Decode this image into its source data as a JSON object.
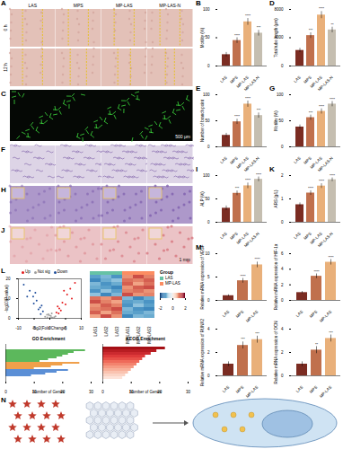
{
  "panels": {
    "A": {
      "label": "A",
      "columns": [
        "LAS",
        "MPS",
        "MP-LAS",
        "MP-LAS-N"
      ],
      "rows": [
        "0 h",
        "12 h"
      ]
    },
    "C": {
      "label": "C",
      "scale_bar": "500 μm"
    },
    "F": {
      "label": "F"
    },
    "H": {
      "label": "H"
    },
    "J": {
      "label": "J",
      "scale_bar": "1 mm"
    },
    "N": {
      "label": "N"
    }
  },
  "chart_data": [
    {
      "type": "bar",
      "title": "B",
      "y_label": "Motility (%)",
      "categories": [
        "LAS",
        "MPS",
        "MP-LAS",
        "MP-LAS-N"
      ],
      "values": [
        20,
        45,
        78,
        58
      ],
      "errors": [
        4,
        5,
        6,
        5
      ],
      "annotations": [
        null,
        "****",
        "****",
        "***"
      ],
      "colors": [
        "#7b2c22",
        "#c0704d",
        "#e9b07a",
        "#c5beb0"
      ],
      "ylim": [
        0,
        100
      ],
      "yticks": [
        0,
        50,
        100
      ]
    },
    {
      "type": "bar",
      "title": "D",
      "y_label": "Total tube length (μm)",
      "categories": [
        "LAS",
        "MPS",
        "MP-LAS",
        "MP-LAS-N"
      ],
      "values": [
        2200,
        4300,
        7200,
        5100
      ],
      "errors": [
        300,
        400,
        500,
        400
      ],
      "annotations": [
        null,
        "***",
        "****",
        "**"
      ],
      "colors": [
        "#7b2c22",
        "#c0704d",
        "#e9b07a",
        "#c5beb0"
      ],
      "ylim": [
        0,
        8000
      ],
      "yticks": [
        0,
        4000,
        8000
      ]
    },
    {
      "type": "bar",
      "title": "E",
      "y_label": "Number of branch point",
      "categories": [
        "LAS",
        "MPS",
        "MP-LAS",
        "MP-LAS-N"
      ],
      "values": [
        22,
        48,
        82,
        60
      ],
      "errors": [
        4,
        5,
        6,
        5
      ],
      "annotations": [
        null,
        "****",
        "****",
        "***"
      ],
      "colors": [
        "#7b2c22",
        "#c0704d",
        "#e9b07a",
        "#c5beb0"
      ],
      "ylim": [
        0,
        100
      ],
      "yticks": [
        0,
        50,
        100
      ]
    },
    {
      "type": "bar",
      "title": "G",
      "y_label": "Motility (%)",
      "categories": [
        "LAS",
        "MPS",
        "MP-LAS",
        "MP-LAS-N"
      ],
      "values": [
        38,
        56,
        68,
        82
      ],
      "errors": [
        4,
        5,
        5,
        5
      ],
      "annotations": [
        null,
        "***",
        "****",
        "****"
      ],
      "colors": [
        "#7b2c22",
        "#c0704d",
        "#e9b07a",
        "#c5beb0"
      ],
      "ylim": [
        0,
        100
      ],
      "yticks": [
        0,
        50,
        100
      ]
    },
    {
      "type": "bar",
      "title": "I",
      "y_label": "ALP (%)",
      "categories": [
        "LAS",
        "MPS",
        "MP-LAS",
        "MP-LAS-N"
      ],
      "values": [
        30,
        62,
        78,
        92
      ],
      "errors": [
        5,
        5,
        6,
        5
      ],
      "annotations": [
        null,
        "***",
        "****",
        "****"
      ],
      "colors": [
        "#7b2c22",
        "#c0704d",
        "#e9b07a",
        "#c5beb0"
      ],
      "ylim": [
        0,
        100
      ],
      "yticks": [
        0,
        50,
        100
      ]
    },
    {
      "type": "bar",
      "title": "K",
      "y_label": "ARS (g/L)",
      "categories": [
        "LAS",
        "MPS",
        "MP-LAS",
        "MP-LAS-N"
      ],
      "values": [
        0.75,
        1.25,
        1.55,
        1.82
      ],
      "errors": [
        0.08,
        0.1,
        0.1,
        0.08
      ],
      "annotations": [
        null,
        "****",
        "****",
        "****"
      ],
      "colors": [
        "#7b2c22",
        "#c0704d",
        "#e9b07a",
        "#c5beb0"
      ],
      "ylim": [
        0,
        2
      ],
      "yticks": [
        0,
        1,
        2
      ]
    },
    {
      "type": "bar",
      "title": "M",
      "y_label": "Relative mRNA expression of VEGF",
      "categories": [
        "LAS",
        "MPS",
        "MP-LAS"
      ],
      "values": [
        1,
        4.2,
        7.6
      ],
      "errors": [
        0.2,
        0.5,
        0.6
      ],
      "annotations": [
        null,
        "****",
        "****"
      ],
      "colors": [
        "#7b2c22",
        "#c0704d",
        "#e9b07a"
      ],
      "ylim": [
        0,
        10
      ],
      "yticks": [
        0,
        5,
        10
      ]
    },
    {
      "type": "bar",
      "y_label": "Relative mRNA expression of HIF-1α",
      "categories": [
        "LAS",
        "MPS",
        "MP-LAS"
      ],
      "values": [
        1,
        3.1,
        4.9
      ],
      "errors": [
        0.15,
        0.3,
        0.35
      ],
      "annotations": [
        null,
        "****",
        "****"
      ],
      "colors": [
        "#7b2c22",
        "#c0704d",
        "#e9b07a"
      ],
      "ylim": [
        0,
        6
      ],
      "yticks": [
        0,
        2,
        4,
        6
      ]
    },
    {
      "type": "bar",
      "y_label": "Relative mRNA expression of RUNX2",
      "categories": [
        "LAS",
        "MPS",
        "MP-LAS"
      ],
      "values": [
        1,
        2.6,
        3.1
      ],
      "errors": [
        0.2,
        0.3,
        0.3
      ],
      "annotations": [
        null,
        "***",
        "***"
      ],
      "colors": [
        "#7b2c22",
        "#c0704d",
        "#e9b07a"
      ],
      "ylim": [
        0,
        4
      ],
      "yticks": [
        0,
        2,
        4
      ]
    },
    {
      "type": "bar",
      "y_label": "Relative mRNA expression of OCN",
      "categories": [
        "LAS",
        "MPS",
        "MP-LAS"
      ],
      "values": [
        1,
        2.2,
        3.2
      ],
      "errors": [
        0.2,
        0.3,
        0.3
      ],
      "annotations": [
        null,
        "**",
        "***"
      ],
      "colors": [
        "#7b2c22",
        "#c0704d",
        "#e9b07a"
      ],
      "ylim": [
        0,
        4
      ],
      "yticks": [
        0,
        2,
        4
      ]
    },
    {
      "type": "scatter",
      "title": "L",
      "x_label": "log2(Fold Change)",
      "y_label": "-log10(P value)",
      "legend": "top",
      "series": [
        {
          "name": "Up",
          "color": "#e41a1c",
          "x": [
            2.1,
            3,
            4,
            5.5,
            2.5,
            6.5,
            3.5,
            7,
            4.5,
            8,
            2.8,
            5
          ],
          "values": [
            3,
            5,
            8,
            12,
            6,
            15,
            4,
            10,
            14,
            18,
            2.5,
            7
          ]
        },
        {
          "name": "Not sig",
          "color": "#9e9e9e",
          "x": [
            -0.8,
            0.3,
            0.9,
            -0.4,
            0.6,
            -1.5,
            1.4,
            0,
            -0.2,
            0.5,
            -0.9,
            1.8
          ],
          "values": [
            0.5,
            1.2,
            0.3,
            2,
            2.5,
            0.8,
            0.6,
            0.2,
            1.5,
            0.4,
            1.8,
            1
          ]
        },
        {
          "name": "Down",
          "color": "#1f4e9c",
          "x": [
            -2.2,
            -3.1,
            -4.2,
            -5.3,
            -2.6,
            -6.4,
            -3.6,
            -7.2,
            -4.6,
            -8.3,
            -2.9,
            -5.1
          ],
          "values": [
            3.5,
            5.5,
            9,
            11,
            6.5,
            14,
            4.5,
            11,
            13,
            17,
            2.2,
            7.5
          ]
        }
      ],
      "xlim": [
        -10,
        10
      ],
      "xticks": [
        -10,
        -5,
        0,
        5,
        10
      ],
      "ylim": [
        0,
        20
      ],
      "yticks": [
        0,
        10,
        20
      ]
    },
    {
      "type": "heatmap",
      "columns": [
        "LAS1",
        "LAS2",
        "LAS3",
        "MP-LAS1",
        "MP-LAS2",
        "MP-LAS3"
      ],
      "column_groups": [
        "LAS",
        "LAS",
        "LAS",
        "MP-LAS",
        "MP-LAS",
        "MP-LAS"
      ],
      "groups_title": "Group",
      "groups": [
        {
          "name": "LAS",
          "color": "#66c2a5"
        },
        {
          "name": "MP-LAS",
          "color": "#fc8d62"
        }
      ],
      "cells": [
        [
          -1.1,
          -0.9,
          -1.2,
          0.9,
          1.3,
          1.0
        ],
        [
          -1.3,
          -1.0,
          -0.8,
          1.1,
          1.0,
          1.2
        ],
        [
          -0.9,
          -1.2,
          -1.0,
          1.2,
          0.8,
          1.1
        ],
        [
          -1.0,
          -1.1,
          -1.3,
          0.9,
          1.2,
          1.3
        ],
        [
          -1.2,
          -0.8,
          -1.1,
          1.0,
          1.1,
          0.9
        ],
        [
          -0.8,
          -1.3,
          -0.9,
          1.3,
          0.9,
          1.0
        ],
        [
          1.1,
          0.9,
          1.2,
          -0.9,
          -1.3,
          -1.0
        ],
        [
          1.3,
          1.0,
          0.8,
          -1.1,
          -1.0,
          -1.2
        ],
        [
          0.9,
          1.2,
          1.0,
          -1.2,
          -0.8,
          -1.1
        ],
        [
          1.0,
          1.1,
          1.3,
          -0.9,
          -1.2,
          -1.3
        ],
        [
          1.2,
          0.8,
          1.1,
          -1.0,
          -1.1,
          -0.9
        ],
        [
          0.8,
          1.3,
          0.9,
          -1.3,
          -0.9,
          -1.0
        ]
      ],
      "color_range": [
        -2,
        2
      ],
      "color_ticks": [
        -2,
        0,
        2
      ]
    },
    {
      "type": "bar",
      "orientation": "horizontal",
      "title": "GO Enrichment",
      "x_label": "Number of Genes",
      "tick_labels": "x",
      "values": [
        28,
        24,
        22,
        20,
        18,
        15,
        12,
        26,
        20,
        16,
        10,
        22,
        18,
        14,
        9
      ],
      "colors": [
        "#5cb85c",
        "#5cb85c",
        "#5cb85c",
        "#5cb85c",
        "#5cb85c",
        "#5cb85c",
        "#5cb85c",
        "#f0a04b",
        "#f0a04b",
        "#f0a04b",
        "#f0a04b",
        "#5b8fd6",
        "#5b8fd6",
        "#5b8fd6",
        "#5b8fd6"
      ],
      "xlim": [
        0,
        30
      ],
      "xticks": [
        0,
        10,
        20,
        30
      ]
    },
    {
      "type": "bar",
      "orientation": "horizontal",
      "title": "KEGG Enrichment",
      "x_label": "Number of Genes",
      "tick_labels": "x",
      "values": [
        22,
        19,
        17,
        15,
        14,
        13,
        12,
        11,
        10,
        9,
        8,
        7
      ],
      "colors": [
        "#a50f15",
        "#b81d22",
        "#cb2a2f",
        "#de3a3a",
        "#e85048",
        "#ef6a5a",
        "#f3836e",
        "#f69b84",
        "#f8b09a",
        "#fac3b0",
        "#fbd4c5",
        "#fde3d9"
      ],
      "xlim": [
        0,
        30
      ],
      "xticks": [
        0,
        10,
        20,
        30
      ]
    }
  ]
}
